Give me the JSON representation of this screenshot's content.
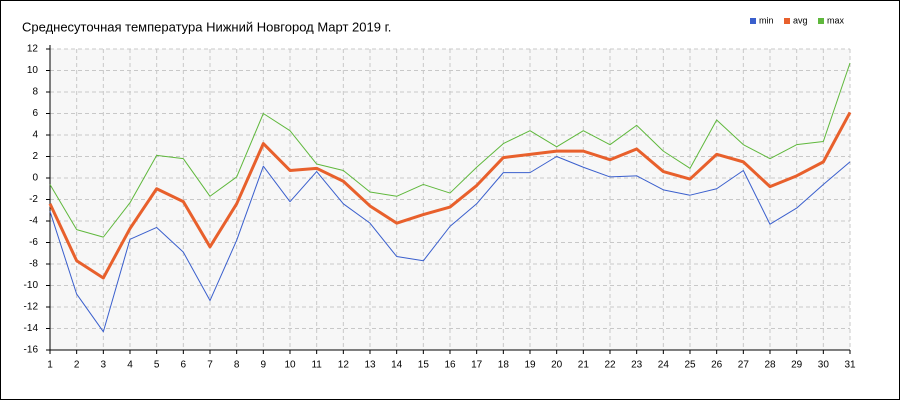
{
  "chart_data": {
    "type": "line",
    "title": "Среднесуточная температура Нижний Новгород  Март 2019 г.",
    "x": [
      1,
      2,
      3,
      4,
      5,
      6,
      7,
      8,
      9,
      10,
      11,
      12,
      13,
      14,
      15,
      16,
      17,
      18,
      19,
      20,
      21,
      22,
      23,
      24,
      25,
      26,
      27,
      28,
      29,
      30,
      31
    ],
    "xlim": [
      1,
      31
    ],
    "xticks": [
      1,
      2,
      3,
      4,
      5,
      6,
      7,
      8,
      9,
      10,
      11,
      12,
      13,
      14,
      15,
      16,
      17,
      18,
      19,
      20,
      21,
      22,
      23,
      24,
      25,
      26,
      27,
      28,
      29,
      30,
      31
    ],
    "ylim": [
      -16,
      12
    ],
    "yticks": [
      -16,
      -14,
      -12,
      -10,
      -8,
      -6,
      -4,
      -2,
      0,
      2,
      4,
      6,
      8,
      10,
      12
    ],
    "grid": true,
    "legend": "top-right",
    "series": [
      {
        "name": "min",
        "color": "#3a5fcd",
        "width": 1,
        "values": [
          -3.1,
          -10.8,
          -14.3,
          -5.7,
          -4.6,
          -6.9,
          -11.4,
          -5.8,
          1.1,
          -2.2,
          0.6,
          -2.4,
          -4.2,
          -7.3,
          -7.7,
          -4.5,
          -2.4,
          0.5,
          0.5,
          2.0,
          1.0,
          0.1,
          0.2,
          -1.1,
          -1.6,
          -1.0,
          0.7,
          -4.3,
          -2.8,
          -0.6,
          1.5
        ]
      },
      {
        "name": "avg",
        "color": "#e8602c",
        "width": 3,
        "values": [
          -2.4,
          -7.7,
          -9.3,
          -4.7,
          -1.0,
          -2.2,
          -6.4,
          -2.4,
          3.2,
          0.7,
          0.9,
          -0.3,
          -2.6,
          -4.2,
          -3.4,
          -2.7,
          -0.7,
          1.9,
          2.2,
          2.5,
          2.5,
          1.7,
          2.7,
          0.6,
          -0.1,
          2.2,
          1.5,
          -0.8,
          0.2,
          1.5,
          6.1
        ]
      },
      {
        "name": "max",
        "color": "#5fb83c",
        "width": 1,
        "values": [
          -0.6,
          -4.8,
          -5.5,
          -2.3,
          2.1,
          1.8,
          -1.7,
          0.1,
          6.0,
          4.4,
          1.3,
          0.7,
          -1.3,
          -1.7,
          -0.6,
          -1.4,
          1.0,
          3.2,
          4.4,
          2.9,
          4.4,
          3.1,
          4.9,
          2.5,
          0.9,
          5.4,
          3.1,
          1.8,
          3.1,
          3.4,
          10.7
        ]
      }
    ]
  }
}
